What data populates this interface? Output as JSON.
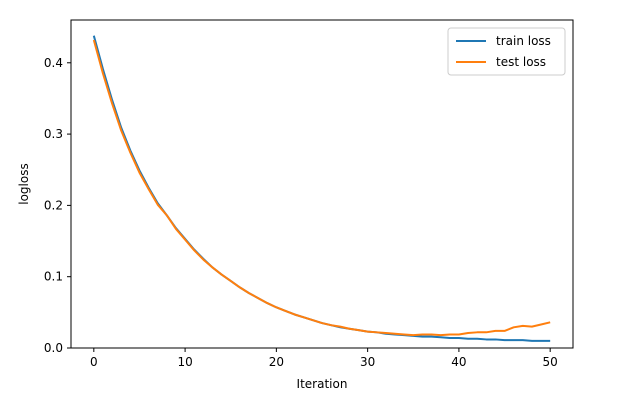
{
  "chart_data": {
    "type": "line",
    "title": "",
    "xlabel": "Iteration",
    "ylabel": "logloss",
    "xlim": [
      -2.5,
      52.5
    ],
    "ylim": [
      0.0,
      0.46
    ],
    "xticks": [
      0,
      10,
      20,
      30,
      40,
      50
    ],
    "yticks": [
      0.0,
      0.1,
      0.2,
      0.3,
      0.4
    ],
    "xtick_labels": [
      "0",
      "10",
      "20",
      "30",
      "40",
      "50"
    ],
    "ytick_labels": [
      "0.0",
      "0.1",
      "0.2",
      "0.3",
      "0.4"
    ],
    "grid": false,
    "legend_position": "top-right",
    "x": [
      0,
      1,
      2,
      3,
      4,
      5,
      6,
      7,
      8,
      9,
      10,
      11,
      12,
      13,
      14,
      15,
      16,
      17,
      18,
      19,
      20,
      21,
      22,
      23,
      24,
      25,
      26,
      27,
      28,
      29,
      30,
      31,
      32,
      33,
      34,
      35,
      36,
      37,
      38,
      39,
      40,
      41,
      42,
      43,
      44,
      45,
      46,
      47,
      48,
      49,
      50
    ],
    "series": [
      {
        "name": "train loss",
        "color": "#1f77b4",
        "values": [
          0.438,
          0.391,
          0.348,
          0.309,
          0.277,
          0.249,
          0.225,
          0.203,
          0.186,
          0.168,
          0.153,
          0.138,
          0.125,
          0.113,
          0.103,
          0.094,
          0.085,
          0.077,
          0.07,
          0.063,
          0.057,
          0.052,
          0.047,
          0.043,
          0.039,
          0.035,
          0.032,
          0.029,
          0.027,
          0.025,
          0.023,
          0.022,
          0.02,
          0.019,
          0.018,
          0.017,
          0.016,
          0.016,
          0.015,
          0.014,
          0.014,
          0.013,
          0.013,
          0.012,
          0.012,
          0.011,
          0.011,
          0.011,
          0.01,
          0.01,
          0.01
        ]
      },
      {
        "name": "test loss",
        "color": "#ff7f0e",
        "values": [
          0.432,
          0.385,
          0.343,
          0.305,
          0.274,
          0.246,
          0.223,
          0.201,
          0.186,
          0.167,
          0.152,
          0.137,
          0.124,
          0.113,
          0.103,
          0.094,
          0.085,
          0.077,
          0.07,
          0.063,
          0.057,
          0.052,
          0.047,
          0.043,
          0.039,
          0.035,
          0.032,
          0.03,
          0.027,
          0.025,
          0.023,
          0.022,
          0.021,
          0.02,
          0.019,
          0.018,
          0.019,
          0.019,
          0.018,
          0.019,
          0.019,
          0.021,
          0.022,
          0.022,
          0.024,
          0.024,
          0.029,
          0.031,
          0.03,
          0.033,
          0.036
        ]
      }
    ]
  }
}
